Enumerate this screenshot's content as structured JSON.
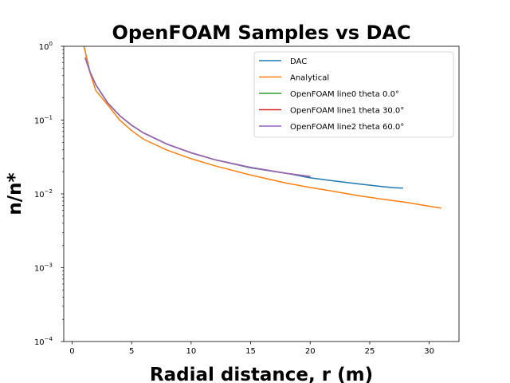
{
  "chart_data": {
    "type": "line",
    "title": "OpenFOAM Samples vs DAC",
    "xlabel": "Radial distance, r (m)",
    "ylabel": "n/n*",
    "xlim": [
      -0.7,
      32.5
    ],
    "ylim": [
      0.0001,
      1
    ],
    "yscale": "log",
    "x_ticks": [
      0,
      5,
      10,
      15,
      20,
      25,
      30
    ],
    "x_tick_labels": [
      "0",
      "5",
      "10",
      "15",
      "20",
      "25",
      "30"
    ],
    "y_ticks": [
      0.0001,
      0.001,
      0.01,
      0.1,
      1
    ],
    "y_tick_labels": [
      {
        "base": "10",
        "exp": "−4"
      },
      {
        "base": "10",
        "exp": "−3"
      },
      {
        "base": "10",
        "exp": "−2"
      },
      {
        "base": "10",
        "exp": "−1"
      },
      {
        "base": "10",
        "exp": "0"
      }
    ],
    "grid": false,
    "legend_position": "upper-right",
    "series": [
      {
        "name": "DAC",
        "color": "#1f77b4",
        "x": [
          1.0,
          1.5,
          2,
          3,
          4,
          5,
          6,
          8,
          10,
          12,
          15,
          18,
          20,
          22,
          24,
          26,
          27,
          27.8
        ],
        "y": [
          1.0,
          0.45,
          0.3,
          0.17,
          0.115,
          0.085,
          0.067,
          0.047,
          0.036,
          0.029,
          0.0225,
          0.019,
          0.0165,
          0.015,
          0.0137,
          0.0126,
          0.0121,
          0.012
        ]
      },
      {
        "name": "Analytical",
        "color": "#ff7f0e",
        "x": [
          1.0,
          1.5,
          2,
          3,
          4,
          5,
          6,
          8,
          10,
          12,
          15,
          18,
          20,
          22,
          24,
          26,
          28,
          31
        ],
        "y": [
          1.0,
          0.44,
          0.25,
          0.16,
          0.1,
          0.072,
          0.055,
          0.039,
          0.03,
          0.024,
          0.018,
          0.014,
          0.0122,
          0.0108,
          0.0095,
          0.0085,
          0.0077,
          0.0064
        ]
      },
      {
        "name": "OpenFOAM line0 theta 0.0°",
        "color": "#2ca02c",
        "x": [
          1.1,
          1.5,
          2,
          3,
          4,
          5,
          6,
          8,
          10,
          12,
          15,
          18,
          20
        ],
        "y": [
          0.7,
          0.45,
          0.3,
          0.17,
          0.115,
          0.085,
          0.067,
          0.047,
          0.036,
          0.029,
          0.0228,
          0.019,
          0.0172
        ]
      },
      {
        "name": "OpenFOAM line1 theta 30.0°",
        "color": "#d62728",
        "x": [
          1.1,
          1.5,
          2,
          3,
          4,
          5,
          6,
          8,
          10,
          12,
          15,
          18,
          20
        ],
        "y": [
          0.7,
          0.45,
          0.3,
          0.17,
          0.115,
          0.085,
          0.067,
          0.047,
          0.036,
          0.029,
          0.0228,
          0.019,
          0.0172
        ]
      },
      {
        "name": "OpenFOAM line2 theta 60.0°",
        "color": "#9467bd",
        "x": [
          1.1,
          1.5,
          2,
          3,
          4,
          5,
          6,
          8,
          10,
          12,
          15,
          18,
          20
        ],
        "y": [
          0.7,
          0.45,
          0.3,
          0.17,
          0.115,
          0.085,
          0.067,
          0.047,
          0.036,
          0.029,
          0.0228,
          0.019,
          0.0172
        ]
      }
    ]
  }
}
